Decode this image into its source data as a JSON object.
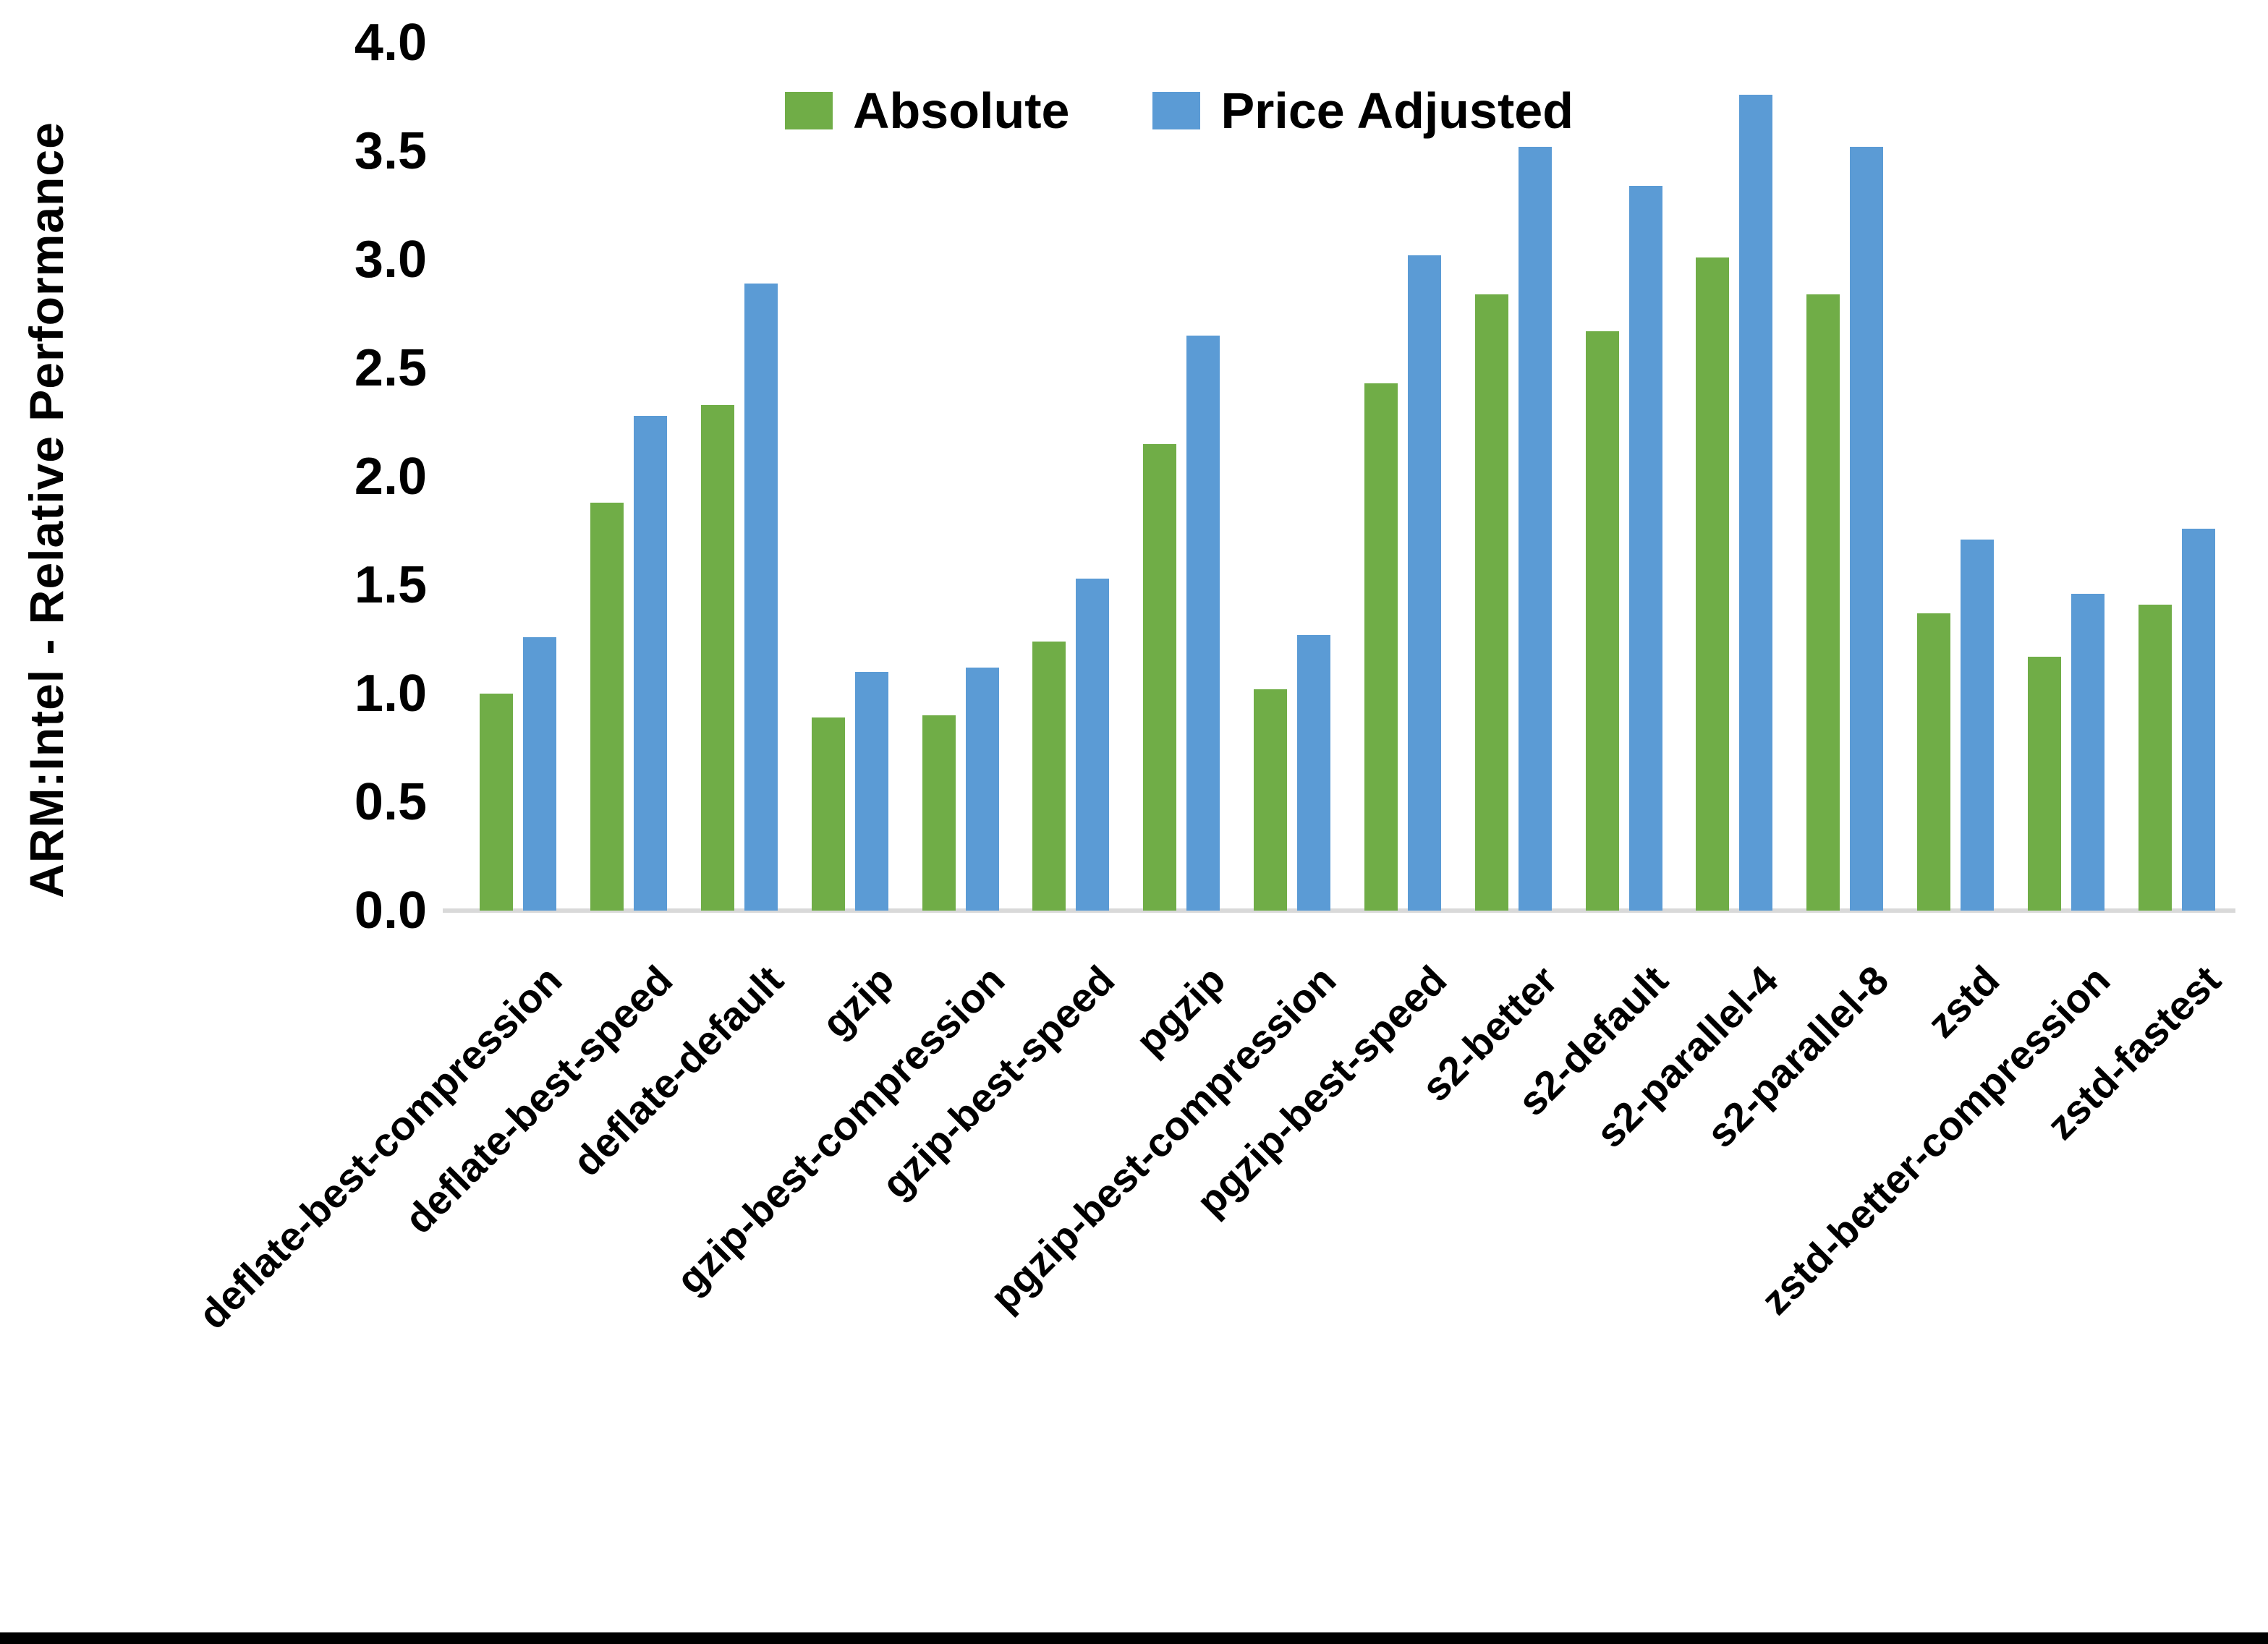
{
  "chart_data": {
    "type": "bar",
    "title": "",
    "ylabel": "ARM:Intel - Relative Performance",
    "xlabel": "",
    "ylim": [
      0.0,
      4.0
    ],
    "ytick_step": 0.5,
    "yticks": [
      "0.0",
      "0.5",
      "1.0",
      "1.5",
      "2.0",
      "2.5",
      "3.0",
      "3.5",
      "4.0"
    ],
    "grid": false,
    "legend_position": "top-center",
    "categories": [
      "deflate-best-compression",
      "deflate-best-speed",
      "deflate-default",
      "gzip",
      "gzip-best-compression",
      "gzip-best-speed",
      "pgzip",
      "pgzip-best-compression",
      "pgzip-best-speed",
      "s2-better",
      "s2-default",
      "s2-parallel-4",
      "s2-parallel-8",
      "zstd",
      "zstd-better-compression",
      "zstd-fastest"
    ],
    "series": [
      {
        "name": "Absolute",
        "color": "#70AD47",
        "values": [
          1.0,
          1.88,
          2.33,
          0.89,
          0.9,
          1.24,
          2.15,
          1.02,
          2.43,
          2.84,
          2.67,
          3.01,
          2.84,
          1.37,
          1.17,
          1.41
        ]
      },
      {
        "name": "Price Adjusted",
        "color": "#5B9BD5",
        "values": [
          1.26,
          2.28,
          2.89,
          1.1,
          1.12,
          1.53,
          2.65,
          1.27,
          3.02,
          3.52,
          3.34,
          3.76,
          3.52,
          1.71,
          1.46,
          1.76
        ]
      }
    ]
  },
  "colors": {
    "background": "#FFFFFF",
    "axis_line": "#D9D9D9",
    "text": "#000000",
    "bottom_edge": "#000000"
  }
}
